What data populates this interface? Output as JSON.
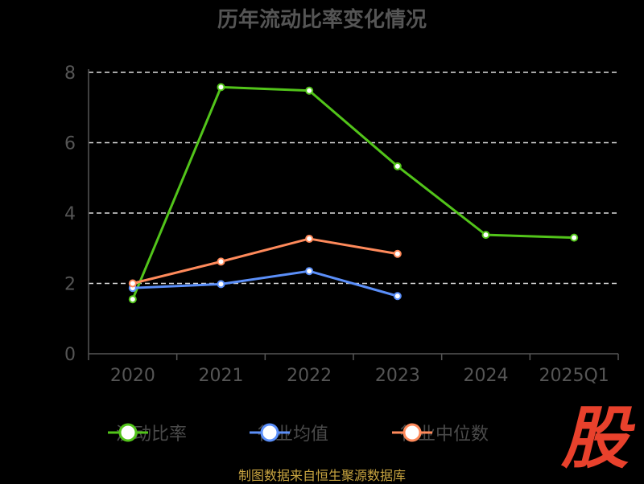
{
  "title": "历年流动比率变化情况",
  "footer": {
    "text": "制图数据来自恒生聚源数据库",
    "color": "#c8a440"
  },
  "watermark": {
    "text": "股",
    "color": "#e8412c"
  },
  "chart_data": {
    "type": "line",
    "categories": [
      "2020",
      "2021",
      "2022",
      "2023",
      "2024",
      "2025Q1"
    ],
    "ylim": [
      0,
      8
    ],
    "yticks": [
      0,
      2,
      4,
      6,
      8
    ],
    "grid": true,
    "legend_position": "bottom",
    "series": [
      {
        "name": "流动比率",
        "color": "#52c41a",
        "values": [
          1.55,
          7.58,
          7.48,
          5.33,
          3.38,
          3.3
        ]
      },
      {
        "name": "行业均值",
        "color": "#5b8ff9",
        "values": [
          1.87,
          1.98,
          2.35,
          1.64,
          null,
          null
        ]
      },
      {
        "name": "行业中位数",
        "color": "#ff8a5b",
        "values": [
          2.0,
          2.62,
          3.27,
          2.84,
          null,
          null
        ]
      }
    ]
  }
}
